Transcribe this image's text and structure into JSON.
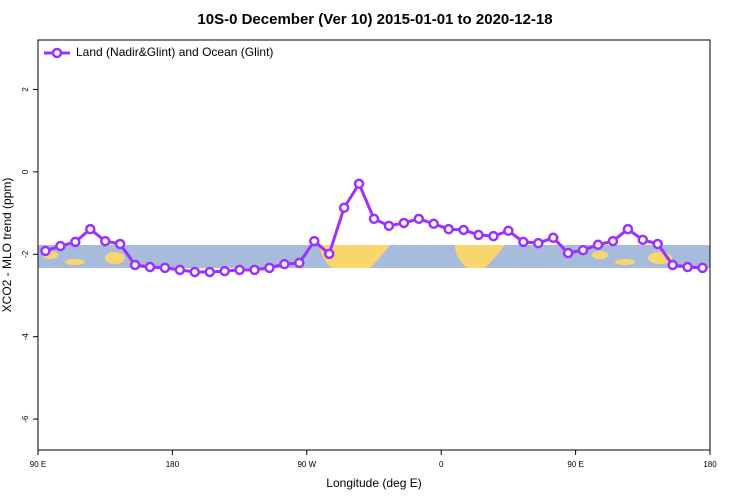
{
  "chart_data": {
    "type": "line",
    "title": "10S-0 December (Ver 10)   2015-01-01 to 2020-12-18",
    "x_label": "Longitude (deg E)",
    "y_label": "XCO2 - MLO trend (ppm)",
    "x": [
      95,
      105,
      115,
      125,
      135,
      145,
      155,
      165,
      175,
      185,
      195,
      205,
      215,
      225,
      235,
      245,
      255,
      265,
      275,
      285,
      295,
      305,
      315,
      325,
      335,
      345,
      355,
      365,
      375,
      385,
      395,
      405,
      415,
      425,
      435,
      445,
      455,
      465,
      475,
      485,
      495,
      505,
      515,
      525,
      535
    ],
    "series": [
      {
        "name": "Land (Nadir&Glint) and Ocean (Glint)",
        "color": "#9b30ff",
        "values": [
          -1.92,
          -1.8,
          -1.7,
          -1.39,
          -1.68,
          -1.75,
          -2.26,
          -2.31,
          -2.33,
          -2.38,
          -2.43,
          -2.43,
          -2.41,
          -2.38,
          -2.38,
          -2.33,
          -2.24,
          -2.21,
          -1.68,
          -1.99,
          -0.87,
          -0.29,
          -1.14,
          -1.31,
          -1.24,
          -1.14,
          -1.26,
          -1.39,
          -1.41,
          -1.53,
          -1.56,
          -1.43,
          -1.7,
          -1.73,
          -1.6,
          -1.97,
          -1.9,
          -1.77,
          -1.68,
          -1.39,
          -1.65,
          -1.75,
          -2.26,
          -2.31,
          -2.33
        ]
      }
    ],
    "xlim": [
      90,
      540
    ],
    "xticks": [
      {
        "value": 90,
        "label": "90 E"
      },
      180,
      {
        "value": 270,
        "label": "90 W"
      },
      {
        "value": 360,
        "label": "0"
      },
      {
        "value": 450,
        "label": "90 E"
      },
      {
        "value": 540,
        "label": "180"
      }
    ],
    "ylim": [
      -6.75,
      3.2
    ],
    "yticks": [
      -6,
      -4,
      -2,
      0,
      2
    ],
    "legend": "top-left"
  }
}
